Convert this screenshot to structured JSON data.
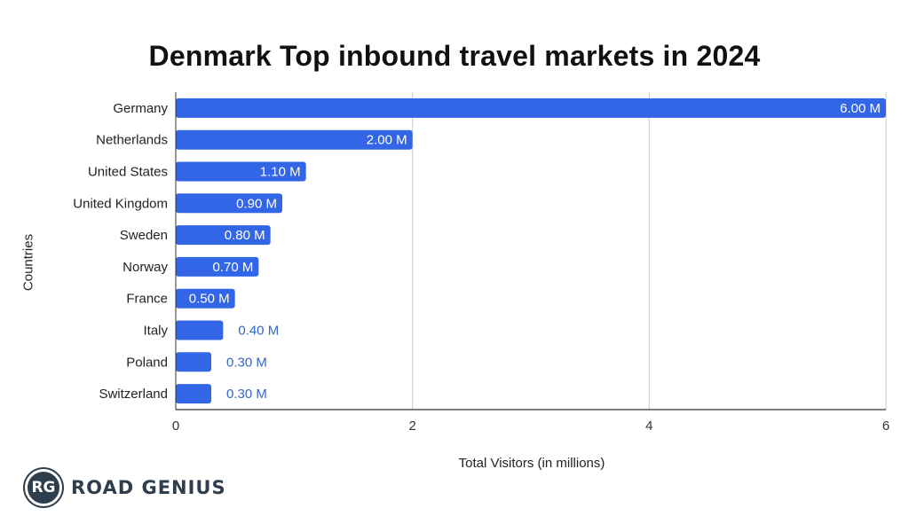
{
  "chart_data": {
    "type": "bar",
    "orientation": "horizontal",
    "title": "Denmark Top inbound travel markets in 2024",
    "xlabel": "Total Visitors (in millions)",
    "ylabel": "Countries",
    "categories": [
      "Germany",
      "Netherlands",
      "United States",
      "United Kingdom",
      "Sweden",
      "Norway",
      "France",
      "Italy",
      "Poland",
      "Switzerland"
    ],
    "values": [
      6.0,
      2.0,
      1.1,
      0.9,
      0.8,
      0.7,
      0.5,
      0.4,
      0.3,
      0.3
    ],
    "data_labels": [
      "6.00 M",
      "2.00 M",
      "1.10 M",
      "0.90 M",
      "0.80 M",
      "0.70 M",
      "0.50 M",
      "0.40 M",
      "0.30 M",
      "0.30 M"
    ],
    "xlim": [
      0,
      6
    ],
    "xticks": [
      "0",
      "2",
      "4",
      "6"
    ],
    "grid": "vertical",
    "bar_color": "#3366e6",
    "inside_label_color": "#ffffff",
    "outside_label_color": "#3366cc"
  },
  "brand": {
    "logo_text": "RG",
    "name": "ROAD GENIUS"
  }
}
